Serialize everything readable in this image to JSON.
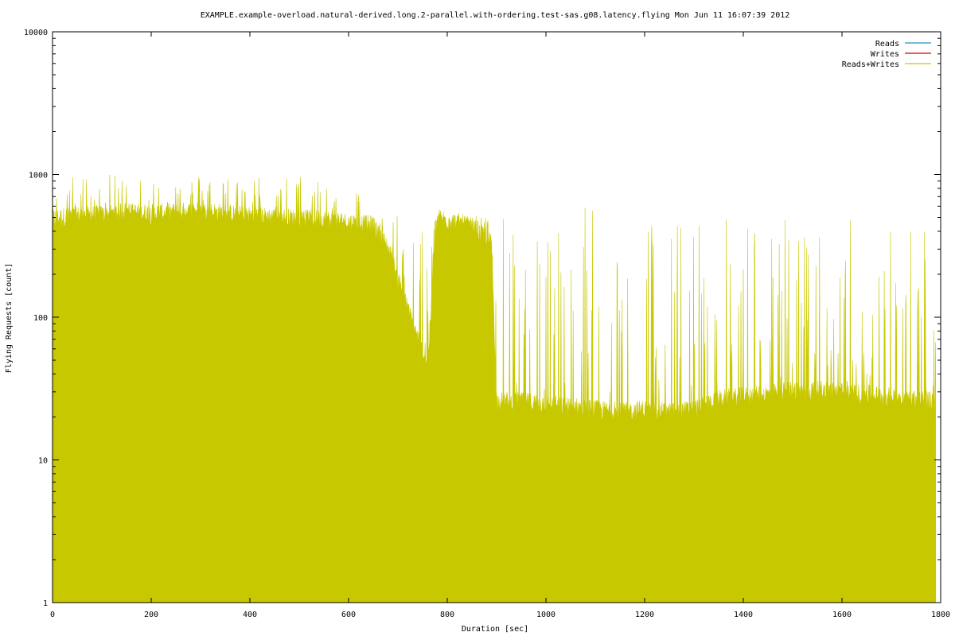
{
  "chart_data": {
    "type": "area",
    "title": "EXAMPLE.example-overload.natural-derived.long.2-parallel.with-ordering.test-sas.g08.latency.flying Mon Jun 11 16:07:39 2012",
    "xlabel": "Duration [sec]",
    "ylabel": "Flying Requests [count]",
    "xlim": [
      0,
      1800
    ],
    "ylim": [
      1,
      10000
    ],
    "yscale": "log",
    "xticks": [
      0,
      200,
      400,
      600,
      800,
      1000,
      1200,
      1400,
      1600,
      1800
    ],
    "yticks": [
      1,
      10,
      100,
      1000,
      10000
    ],
    "ytick_labels": [
      "1",
      "10",
      "100",
      "1000",
      "10000"
    ],
    "grid": false,
    "legend_position": "top-right",
    "series": [
      {
        "name": "Reads",
        "color": "#2a8fbd",
        "values": []
      },
      {
        "name": "Writes",
        "color": "#cc0000",
        "values": []
      },
      {
        "name": "Reads+Writes",
        "color": "#c8c800",
        "x": [
          0,
          50,
          100,
          150,
          200,
          250,
          300,
          350,
          400,
          450,
          500,
          550,
          600,
          650,
          680,
          700,
          720,
          740,
          760,
          780,
          800,
          850,
          890,
          900,
          950,
          1000,
          1050,
          1100,
          1150,
          1200,
          1250,
          1300,
          1350,
          1400,
          1450,
          1500,
          1550,
          1600,
          1650,
          1700,
          1750,
          1790
        ],
        "values": [
          480,
          500,
          510,
          530,
          520,
          530,
          540,
          520,
          500,
          490,
          480,
          470,
          450,
          430,
          300,
          180,
          110,
          70,
          45,
          480,
          470,
          420,
          320,
          25,
          25,
          24,
          23,
          22,
          21,
          22,
          21,
          22,
          26,
          27,
          28,
          30,
          30,
          29,
          28,
          27,
          26,
          25
        ],
        "peaks": [
          1000,
          1000,
          1000,
          1000,
          1000,
          1000,
          1000,
          1000,
          1000,
          1000,
          1000,
          1000,
          1000,
          520,
          520,
          520,
          520,
          520,
          520,
          520,
          520,
          520,
          520,
          520,
          520,
          520,
          520,
          1000,
          520,
          520,
          520,
          520,
          520,
          520,
          520,
          520,
          520,
          520,
          520,
          520,
          520,
          520
        ]
      }
    ]
  }
}
